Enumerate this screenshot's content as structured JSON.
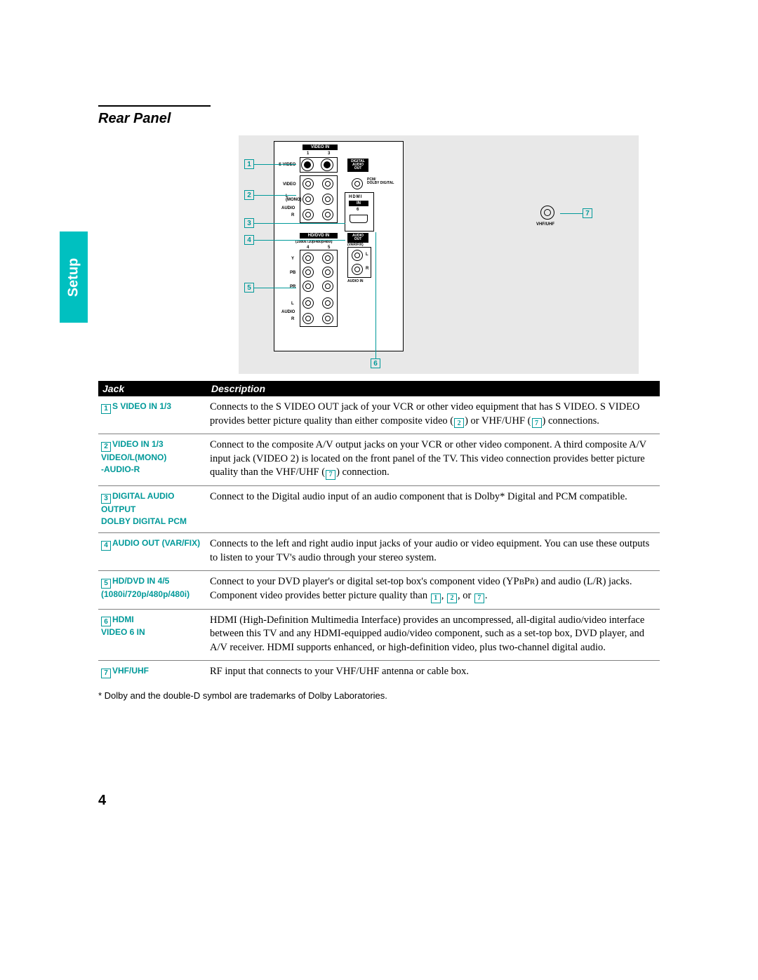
{
  "colors": {
    "accent": "#009999",
    "tab_bg": "#00c0c0",
    "tab_text": "#ffffff",
    "header_bg": "#000000",
    "header_text": "#ffffff",
    "diagram_bg": "#e8e8e8",
    "rule": "#808080"
  },
  "typography": {
    "body_font": "Georgia, serif",
    "ui_font": "Arial, sans-serif",
    "title_size_pt": 15,
    "body_size_pt": 11,
    "jack_label_size_pt": 9
  },
  "page_title": "Rear Panel",
  "side_tab": "Setup",
  "page_number": "4",
  "diagram": {
    "callouts": [
      "1",
      "2",
      "3",
      "4",
      "5",
      "6",
      "7"
    ],
    "panel_labels": {
      "video_in": "VIDEO IN",
      "cols_top": [
        "1",
        "3"
      ],
      "s_video": "S VIDEO",
      "video": "VIDEO",
      "l_mono": "L\n(MONO)",
      "audio": "AUDIO",
      "r": "R",
      "digital_audio_out": "DIGITAL\nAUDIO\nOUT",
      "pcm_dolby": "PCM/\nDOLBY DIGITAL",
      "hdmi": "HDMI",
      "in": "IN",
      "six": "6",
      "hd_dvd_in": "HD/DVD IN",
      "hd_res": "(1080i/720p/480p/480i)",
      "cols_hd": [
        "4",
        "5"
      ],
      "y": "Y",
      "pb": "PB",
      "pr": "PR",
      "l": "L",
      "audio_out": "AUDIO\nOUT",
      "var_fix": "(VAR/FIX)",
      "out_l": "L",
      "out_r": "R",
      "audio_in": "AUDIO IN",
      "vhf_uhf": "VHF/UHF"
    }
  },
  "table": {
    "headers": {
      "jack": "Jack",
      "description": "Description"
    },
    "rows": [
      {
        "num": "1",
        "label": "S VIDEO IN 1/3",
        "desc_pre": "Connects to the S VIDEO OUT jack of your VCR or other video equipment that has S VIDEO. S VIDEO provides better picture quality than either composite video (",
        "ref1": "2",
        "desc_mid": ") or VHF/UHF (",
        "ref2": "7",
        "desc_post": ") connections."
      },
      {
        "num": "2",
        "label": "VIDEO IN 1/3\nVIDEO/L(MONO)\n-AUDIO-R",
        "desc_pre": "Connect to the composite A/V output jacks on your VCR or other video component. A third composite A/V input jack (VIDEO 2) is located on the front panel of the TV. This video connection provides better picture quality than the VHF/UHF (",
        "ref1": "7",
        "desc_post": ") connection."
      },
      {
        "num": "3",
        "label": "DIGITAL AUDIO OUTPUT\nDOLBY DIGITAL PCM",
        "desc": "Connect to the Digital audio input of an audio component that is Dolby* Digital and PCM compatible."
      },
      {
        "num": "4",
        "label": "AUDIO OUT (VAR/FIX)",
        "desc": "Connects to the left and right audio input jacks of your audio or video equipment. You can use these outputs to listen to your TV's audio through your stereo system."
      },
      {
        "num": "5",
        "label": "HD/DVD IN 4/5\n(1080i/720p/480p/480i)",
        "desc_pre": "Connect to your DVD player's or digital set-top box's component video (YPBPR) and audio (L/R) jacks. Component video provides better picture quality than ",
        "ref1": "1",
        "desc_mid1": ", ",
        "ref2": "2",
        "desc_mid2": ", or ",
        "ref3": "7",
        "desc_post": "."
      },
      {
        "num": "6",
        "label": "HDMI\nVIDEO 6 IN",
        "desc": "HDMI (High-Definition Multimedia Interface) provides an uncompressed, all-digital audio/video interface between this TV and any HDMI-equipped audio/video component, such as a set-top box, DVD player, and A/V receiver. HDMI supports enhanced, or high-definition video, plus two-channel digital audio."
      },
      {
        "num": "7",
        "label": "VHF/UHF",
        "desc": "RF input that connects to your VHF/UHF antenna or cable box."
      }
    ]
  },
  "footnote": "* Dolby and the double-D symbol are trademarks of Dolby Laboratories."
}
